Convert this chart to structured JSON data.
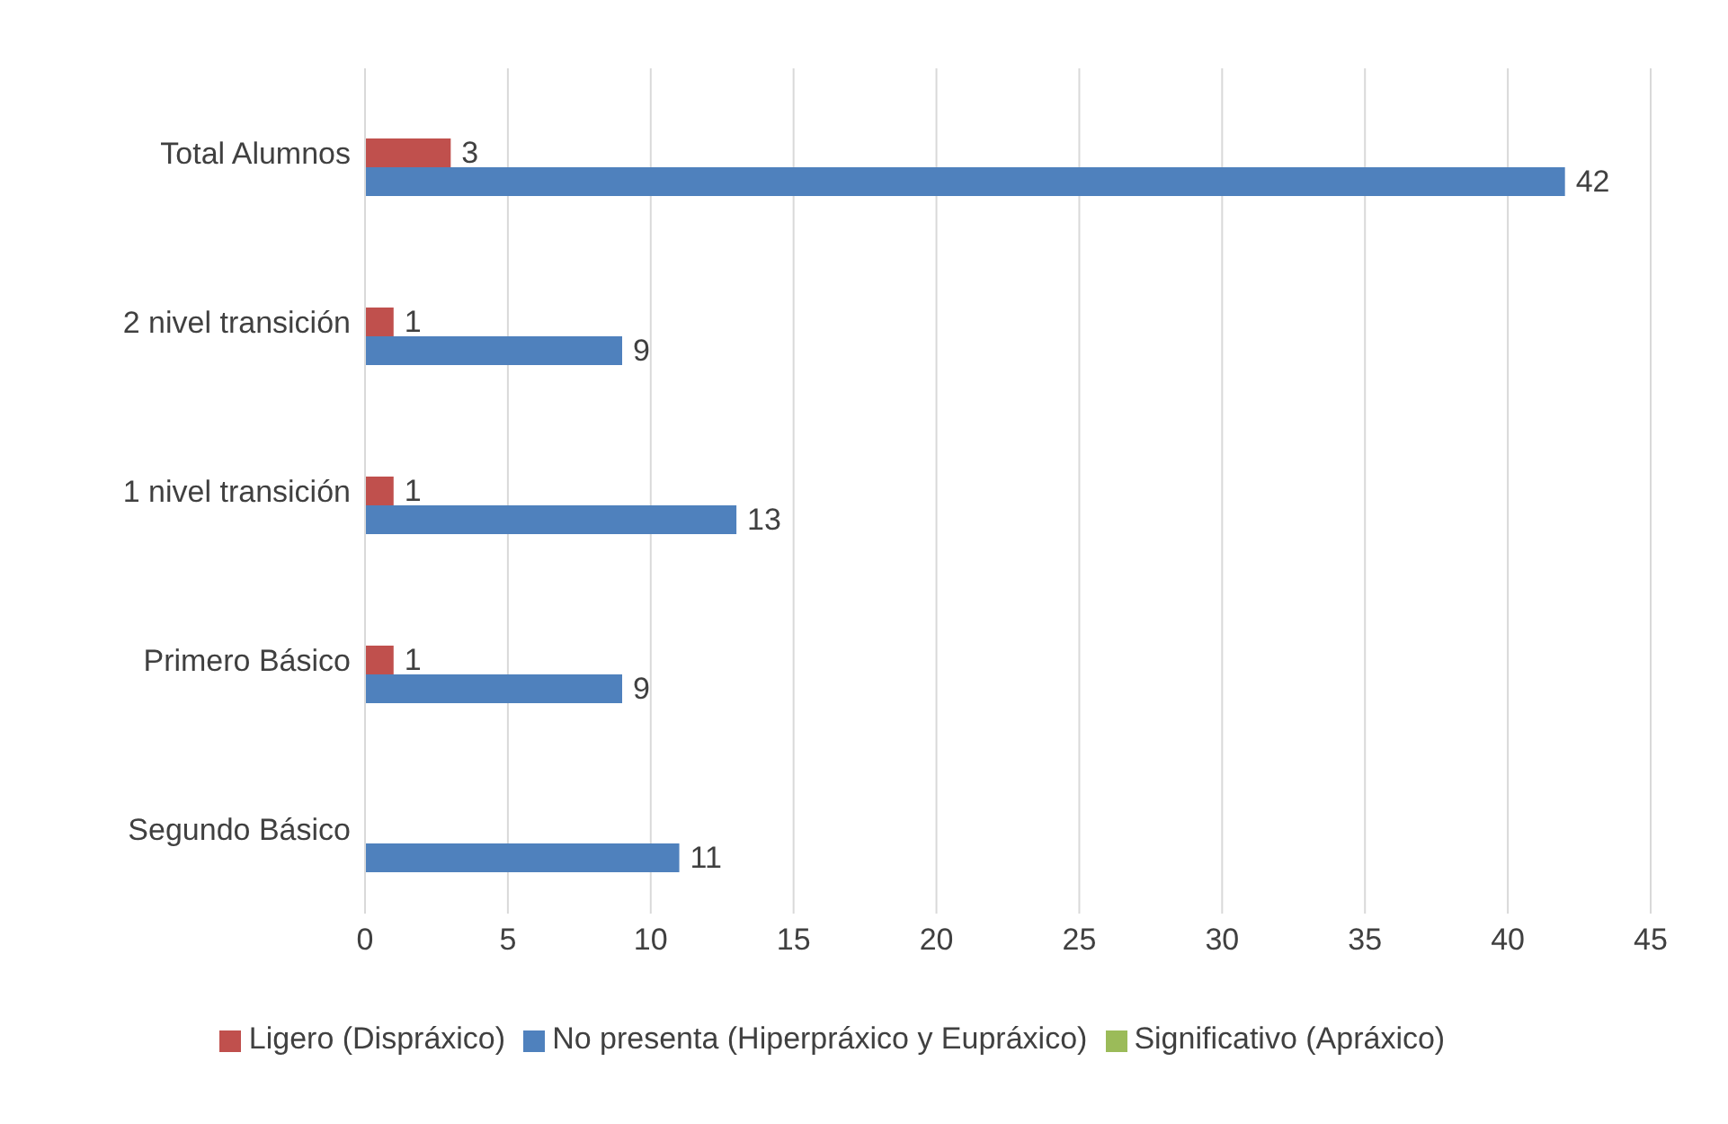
{
  "chart_data": {
    "type": "bar",
    "orientation": "horizontal",
    "categories": [
      "Total Alumnos",
      "2 nivel transición",
      "1 nivel transición",
      "Primero Básico",
      "Segundo Básico"
    ],
    "series": [
      {
        "name": "Significativo (Apráxico)",
        "color": "#9bbb59",
        "values": [
          null,
          null,
          null,
          null,
          null
        ]
      },
      {
        "name": "Ligero (Dispráxico)",
        "color": "#c0504d",
        "values": [
          3,
          1,
          1,
          1,
          null
        ],
        "value_labels": [
          "3",
          "1",
          "1",
          "1",
          null
        ]
      },
      {
        "name": "No presenta (Hiperpráxico y Eupráxico)",
        "color": "#4f81bd",
        "values": [
          42,
          9,
          13,
          9,
          11
        ],
        "value_labels": [
          "42",
          "9",
          "13",
          "9",
          "11"
        ]
      }
    ],
    "xlim": [
      0,
      45
    ],
    "xticks": [
      0,
      5,
      10,
      15,
      20,
      25,
      30,
      35,
      40,
      45
    ],
    "grid": "x",
    "legend": "bottom"
  }
}
